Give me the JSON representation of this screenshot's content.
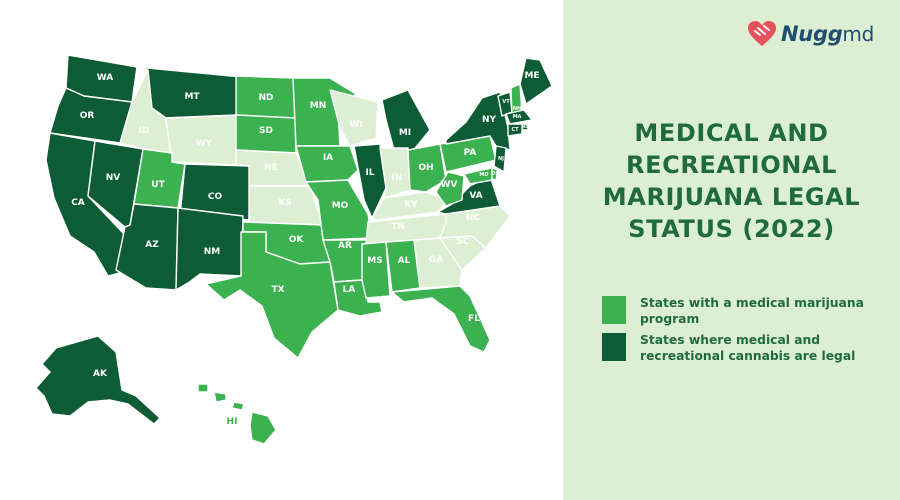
{
  "brand": {
    "name": "Nugg",
    "name_suffix": "md",
    "icon": "heart-logo-icon"
  },
  "title_lines": [
    "MEDICAL AND",
    "RECREATIONAL",
    "MARIJUANA LEGAL",
    "STATUS (2022)"
  ],
  "legend": [
    {
      "label": "States with a medical marijuana program",
      "color": "#3bb24f",
      "status": "medical"
    },
    {
      "label": "States where medical and recreational cannabis are legal",
      "color": "#0d5c35",
      "status": "recreational"
    }
  ],
  "colors": {
    "recreational": "#0d5c35",
    "medical": "#3bb24f",
    "none": "#dcefd2",
    "panel": "#dcefd2",
    "title": "#1f6b3c",
    "brand_heart": "#e8505b",
    "brand_text": "#1f4f6e"
  },
  "states": [
    {
      "code": "WA",
      "status": "recreational"
    },
    {
      "code": "OR",
      "status": "recreational"
    },
    {
      "code": "CA",
      "status": "recreational"
    },
    {
      "code": "NV",
      "status": "recreational"
    },
    {
      "code": "ID",
      "status": "none"
    },
    {
      "code": "MT",
      "status": "recreational"
    },
    {
      "code": "WY",
      "status": "none"
    },
    {
      "code": "UT",
      "status": "medical"
    },
    {
      "code": "CO",
      "status": "recreational"
    },
    {
      "code": "AZ",
      "status": "recreational"
    },
    {
      "code": "NM",
      "status": "recreational"
    },
    {
      "code": "ND",
      "status": "medical"
    },
    {
      "code": "SD",
      "status": "medical"
    },
    {
      "code": "NE",
      "status": "none"
    },
    {
      "code": "KS",
      "status": "none"
    },
    {
      "code": "OK",
      "status": "medical"
    },
    {
      "code": "TX",
      "status": "medical"
    },
    {
      "code": "MN",
      "status": "medical"
    },
    {
      "code": "IA",
      "status": "medical"
    },
    {
      "code": "MO",
      "status": "medical"
    },
    {
      "code": "AR",
      "status": "medical"
    },
    {
      "code": "LA",
      "status": "medical"
    },
    {
      "code": "WI",
      "status": "none"
    },
    {
      "code": "IL",
      "status": "recreational"
    },
    {
      "code": "MI",
      "status": "recreational"
    },
    {
      "code": "IN",
      "status": "none"
    },
    {
      "code": "OH",
      "status": "medical"
    },
    {
      "code": "KY",
      "status": "none"
    },
    {
      "code": "TN",
      "status": "none"
    },
    {
      "code": "MS",
      "status": "medical"
    },
    {
      "code": "AL",
      "status": "medical"
    },
    {
      "code": "GA",
      "status": "none"
    },
    {
      "code": "FL",
      "status": "medical"
    },
    {
      "code": "SC",
      "status": "none"
    },
    {
      "code": "NC",
      "status": "none"
    },
    {
      "code": "VA",
      "status": "recreational"
    },
    {
      "code": "WV",
      "status": "medical"
    },
    {
      "code": "PA",
      "status": "medical"
    },
    {
      "code": "NY",
      "status": "recreational"
    },
    {
      "code": "VT",
      "status": "recreational"
    },
    {
      "code": "NH",
      "status": "medical"
    },
    {
      "code": "ME",
      "status": "recreational"
    },
    {
      "code": "MA",
      "status": "recreational"
    },
    {
      "code": "RI",
      "status": "recreational"
    },
    {
      "code": "CT",
      "status": "recreational"
    },
    {
      "code": "NJ",
      "status": "recreational"
    },
    {
      "code": "DE",
      "status": "medical"
    },
    {
      "code": "MD",
      "status": "medical"
    },
    {
      "code": "AK",
      "status": "recreational"
    },
    {
      "code": "HI",
      "status": "medical"
    }
  ]
}
